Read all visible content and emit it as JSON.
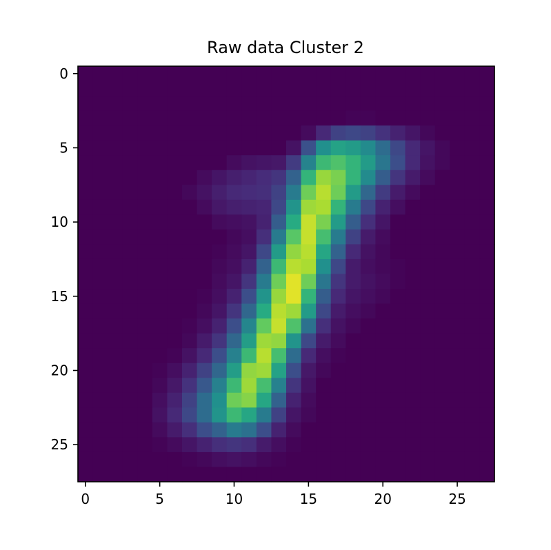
{
  "chart_data": {
    "type": "heatmap",
    "title": "Raw data Cluster 2",
    "xlabel": "",
    "ylabel": "",
    "colormap": "viridis",
    "rows": 28,
    "cols": 28,
    "value_range": [
      0,
      1
    ],
    "xlim": [
      -0.5,
      27.5
    ],
    "ylim": [
      27.5,
      -0.5
    ],
    "x_ticks": [
      0,
      5,
      10,
      15,
      20,
      25
    ],
    "y_ticks": [
      0,
      5,
      10,
      15,
      20,
      25
    ],
    "x_tick_labels": [
      "0",
      "5",
      "10",
      "15",
      "20",
      "25"
    ],
    "y_tick_labels": [
      "0",
      "5",
      "10",
      "15",
      "20",
      "25"
    ],
    "grid": false,
    "z": [
      [
        0,
        0,
        0,
        0,
        0,
        0,
        0,
        0,
        0,
        0,
        0,
        0,
        0,
        0,
        0,
        0,
        0,
        0,
        0,
        0,
        0,
        0,
        0,
        0,
        0,
        0,
        0,
        0
      ],
      [
        0,
        0,
        0,
        0,
        0,
        0,
        0,
        0,
        0,
        0,
        0,
        0,
        0,
        0,
        0,
        0,
        0,
        0,
        0,
        0,
        0,
        0,
        0,
        0,
        0,
        0,
        0,
        0
      ],
      [
        0,
        0,
        0,
        0,
        0,
        0,
        0,
        0,
        0,
        0,
        0,
        0,
        0,
        0,
        0,
        0,
        0,
        0,
        0,
        0,
        0,
        0,
        0,
        0,
        0,
        0,
        0,
        0
      ],
      [
        0,
        0,
        0,
        0,
        0,
        0,
        0,
        0,
        0,
        0,
        0,
        0,
        0,
        0,
        0,
        0,
        0,
        0,
        0.01,
        0.01,
        0,
        0,
        0,
        0,
        0,
        0,
        0,
        0
      ],
      [
        0,
        0,
        0,
        0,
        0,
        0,
        0,
        0,
        0,
        0,
        0,
        0,
        0,
        0,
        0,
        0.03,
        0.12,
        0.2,
        0.22,
        0.2,
        0.15,
        0.1,
        0.06,
        0.02,
        0,
        0,
        0,
        0
      ],
      [
        0,
        0,
        0,
        0,
        0,
        0,
        0,
        0,
        0,
        0,
        0,
        0,
        0,
        0,
        0.05,
        0.25,
        0.5,
        0.58,
        0.55,
        0.48,
        0.36,
        0.22,
        0.12,
        0.06,
        0.02,
        0,
        0,
        0
      ],
      [
        0,
        0,
        0,
        0,
        0,
        0,
        0,
        0,
        0,
        0,
        0.03,
        0.05,
        0.06,
        0.07,
        0.18,
        0.45,
        0.68,
        0.72,
        0.66,
        0.55,
        0.4,
        0.24,
        0.12,
        0.05,
        0.02,
        0,
        0,
        0
      ],
      [
        0,
        0,
        0,
        0,
        0,
        0,
        0,
        0,
        0.03,
        0.06,
        0.09,
        0.11,
        0.13,
        0.16,
        0.32,
        0.66,
        0.85,
        0.8,
        0.66,
        0.48,
        0.3,
        0.16,
        0.08,
        0.03,
        0,
        0,
        0,
        0
      ],
      [
        0,
        0,
        0,
        0,
        0,
        0,
        0,
        0.02,
        0.05,
        0.09,
        0.12,
        0.13,
        0.14,
        0.2,
        0.42,
        0.78,
        0.9,
        0.78,
        0.55,
        0.34,
        0.18,
        0.08,
        0.03,
        0,
        0,
        0,
        0,
        0
      ],
      [
        0,
        0,
        0,
        0,
        0,
        0,
        0,
        0,
        0.03,
        0.07,
        0.09,
        0.1,
        0.11,
        0.22,
        0.52,
        0.86,
        0.88,
        0.66,
        0.42,
        0.22,
        0.1,
        0.04,
        0,
        0,
        0,
        0,
        0,
        0
      ],
      [
        0,
        0,
        0,
        0,
        0,
        0,
        0,
        0,
        0,
        0.03,
        0.04,
        0.05,
        0.1,
        0.3,
        0.62,
        0.92,
        0.8,
        0.55,
        0.3,
        0.14,
        0.06,
        0,
        0,
        0,
        0,
        0,
        0,
        0
      ],
      [
        0,
        0,
        0,
        0,
        0,
        0,
        0,
        0,
        0,
        0,
        0.02,
        0.04,
        0.14,
        0.42,
        0.74,
        0.92,
        0.7,
        0.42,
        0.2,
        0.08,
        0.03,
        0,
        0,
        0,
        0,
        0,
        0,
        0
      ],
      [
        0,
        0,
        0,
        0,
        0,
        0,
        0,
        0,
        0,
        0.01,
        0.03,
        0.06,
        0.22,
        0.55,
        0.84,
        0.9,
        0.6,
        0.32,
        0.12,
        0.05,
        0.02,
        0,
        0,
        0,
        0,
        0,
        0,
        0
      ],
      [
        0,
        0,
        0,
        0,
        0,
        0,
        0,
        0,
        0,
        0.02,
        0.04,
        0.1,
        0.32,
        0.68,
        0.9,
        0.88,
        0.5,
        0.22,
        0.08,
        0.04,
        0.02,
        0.01,
        0,
        0,
        0,
        0,
        0,
        0
      ],
      [
        0,
        0,
        0,
        0,
        0,
        0,
        0,
        0,
        0,
        0.03,
        0.06,
        0.16,
        0.42,
        0.78,
        0.96,
        0.78,
        0.4,
        0.16,
        0.08,
        0.05,
        0.03,
        0.01,
        0,
        0,
        0,
        0,
        0,
        0
      ],
      [
        0,
        0,
        0,
        0,
        0,
        0,
        0,
        0,
        0.01,
        0.04,
        0.1,
        0.24,
        0.52,
        0.85,
        0.96,
        0.66,
        0.3,
        0.12,
        0.06,
        0.04,
        0.02,
        0,
        0,
        0,
        0,
        0,
        0,
        0
      ],
      [
        0,
        0,
        0,
        0,
        0,
        0,
        0,
        0,
        0.02,
        0.06,
        0.16,
        0.34,
        0.62,
        0.9,
        0.86,
        0.55,
        0.22,
        0.08,
        0.04,
        0.02,
        0,
        0,
        0,
        0,
        0,
        0,
        0,
        0
      ],
      [
        0,
        0,
        0,
        0,
        0,
        0,
        0,
        0.01,
        0.04,
        0.1,
        0.24,
        0.46,
        0.76,
        0.92,
        0.72,
        0.38,
        0.14,
        0.05,
        0.02,
        0,
        0,
        0,
        0,
        0,
        0,
        0,
        0,
        0
      ],
      [
        0,
        0,
        0,
        0,
        0,
        0,
        0,
        0.02,
        0.08,
        0.16,
        0.34,
        0.56,
        0.86,
        0.84,
        0.52,
        0.22,
        0.08,
        0.03,
        0,
        0,
        0,
        0,
        0,
        0,
        0,
        0,
        0,
        0
      ],
      [
        0,
        0,
        0,
        0,
        0,
        0,
        0.01,
        0.05,
        0.12,
        0.24,
        0.44,
        0.68,
        0.9,
        0.7,
        0.36,
        0.12,
        0.04,
        0.01,
        0,
        0,
        0,
        0,
        0,
        0,
        0,
        0,
        0,
        0
      ],
      [
        0,
        0,
        0,
        0,
        0,
        0.01,
        0.04,
        0.1,
        0.2,
        0.34,
        0.56,
        0.84,
        0.86,
        0.58,
        0.24,
        0.07,
        0.02,
        0,
        0,
        0,
        0,
        0,
        0,
        0,
        0,
        0,
        0,
        0
      ],
      [
        0,
        0,
        0,
        0,
        0,
        0.02,
        0.07,
        0.15,
        0.28,
        0.44,
        0.68,
        0.86,
        0.7,
        0.44,
        0.16,
        0.05,
        0,
        0,
        0,
        0,
        0,
        0,
        0,
        0,
        0,
        0,
        0,
        0
      ],
      [
        0,
        0,
        0,
        0,
        0,
        0.04,
        0.1,
        0.2,
        0.36,
        0.5,
        0.78,
        0.82,
        0.6,
        0.32,
        0.1,
        0.03,
        0,
        0,
        0,
        0,
        0,
        0,
        0,
        0,
        0,
        0,
        0,
        0
      ],
      [
        0,
        0,
        0,
        0,
        0,
        0.05,
        0.12,
        0.22,
        0.36,
        0.52,
        0.68,
        0.6,
        0.42,
        0.2,
        0.06,
        0.02,
        0,
        0,
        0,
        0,
        0,
        0,
        0,
        0,
        0,
        0,
        0,
        0
      ],
      [
        0,
        0,
        0,
        0,
        0,
        0.03,
        0.08,
        0.14,
        0.24,
        0.32,
        0.42,
        0.38,
        0.24,
        0.1,
        0.03,
        0,
        0,
        0,
        0,
        0,
        0,
        0,
        0,
        0,
        0,
        0,
        0,
        0
      ],
      [
        0,
        0,
        0,
        0,
        0,
        0.01,
        0.03,
        0.06,
        0.1,
        0.14,
        0.16,
        0.14,
        0.08,
        0.04,
        0.01,
        0,
        0,
        0,
        0,
        0,
        0,
        0,
        0,
        0,
        0,
        0,
        0,
        0
      ],
      [
        0,
        0,
        0,
        0,
        0,
        0,
        0,
        0.01,
        0.02,
        0.04,
        0.05,
        0.04,
        0.02,
        0.01,
        0,
        0,
        0,
        0,
        0,
        0,
        0,
        0,
        0,
        0,
        0,
        0,
        0,
        0
      ],
      [
        0,
        0,
        0,
        0,
        0,
        0,
        0,
        0,
        0,
        0,
        0,
        0,
        0,
        0,
        0,
        0,
        0,
        0,
        0,
        0,
        0,
        0,
        0,
        0,
        0,
        0,
        0,
        0
      ]
    ]
  }
}
